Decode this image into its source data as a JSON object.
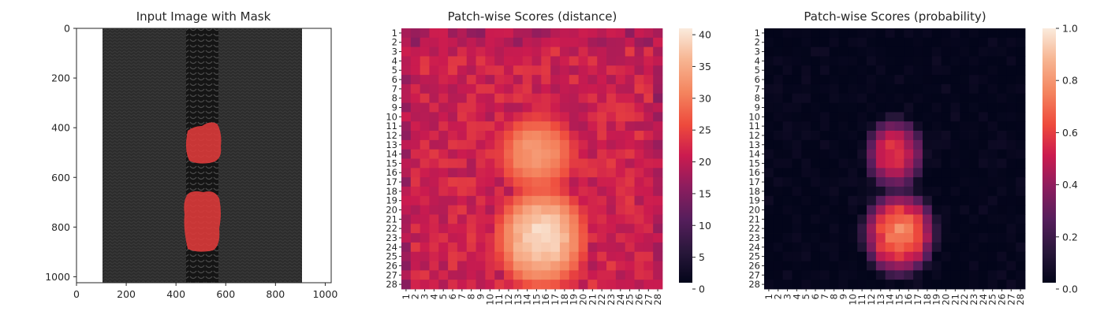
{
  "chart_data": [
    {
      "type": "image",
      "title": "Input Image with Mask",
      "xlim": [
        0,
        1024
      ],
      "ylim": [
        1024,
        0
      ],
      "xticks": [
        "0",
        "200",
        "400",
        "600",
        "800",
        "1000"
      ],
      "yticks": [
        "0",
        "200",
        "400",
        "600",
        "800",
        "1000"
      ],
      "colors": {
        "background": "#ffffff",
        "fabric": "#2b2b2b",
        "zipper": "#161616",
        "mask": "#dd3b3b"
      }
    },
    {
      "type": "heatmap",
      "title": "Patch-wise Scores (distance)",
      "rows": [
        "1",
        "2",
        "3",
        "4",
        "5",
        "6",
        "7",
        "8",
        "9",
        "10",
        "11",
        "12",
        "13",
        "14",
        "15",
        "16",
        "17",
        "18",
        "19",
        "20",
        "21",
        "22",
        "23",
        "24",
        "25",
        "26",
        "27",
        "28"
      ],
      "cols": [
        "1",
        "2",
        "3",
        "4",
        "5",
        "6",
        "7",
        "8",
        "9",
        "10",
        "11",
        "12",
        "13",
        "14",
        "15",
        "16",
        "17",
        "18",
        "19",
        "20",
        "21",
        "22",
        "23",
        "24",
        "25",
        "26",
        "27",
        "28"
      ],
      "colorbar": {
        "min": 0,
        "max": 41,
        "ticks": [
          "0",
          "5",
          "10",
          "15",
          "20",
          "25",
          "30",
          "35",
          "40"
        ]
      },
      "hotspots": [
        {
          "rows": [
            12,
            16
          ],
          "cols": [
            13,
            17
          ],
          "peak": 34
        },
        {
          "rows": [
            20,
            26
          ],
          "cols": [
            13,
            18
          ],
          "peak": 41
        }
      ],
      "background_range": [
        18,
        24
      ]
    },
    {
      "type": "heatmap",
      "title": "Patch-wise Scores (probability)",
      "rows": [
        "1",
        "2",
        "3",
        "4",
        "5",
        "6",
        "7",
        "8",
        "9",
        "10",
        "11",
        "12",
        "13",
        "14",
        "15",
        "16",
        "17",
        "18",
        "19",
        "20",
        "21",
        "22",
        "23",
        "24",
        "25",
        "26",
        "27",
        "28"
      ],
      "cols": [
        "1",
        "2",
        "3",
        "4",
        "5",
        "6",
        "7",
        "8",
        "9",
        "10",
        "11",
        "12",
        "13",
        "14",
        "15",
        "16",
        "17",
        "18",
        "19",
        "20",
        "21",
        "22",
        "23",
        "24",
        "25",
        "26",
        "27",
        "28"
      ],
      "colorbar": {
        "min": 0.0,
        "max": 1.0,
        "ticks": [
          "0.0",
          "0.2",
          "0.4",
          "0.6",
          "0.8",
          "1.0"
        ]
      },
      "hotspots": [
        {
          "rows": [
            12,
            16
          ],
          "cols": [
            13,
            16
          ],
          "peak": 0.62
        },
        {
          "rows": [
            20,
            25
          ],
          "cols": [
            13,
            17
          ],
          "peak": 0.82
        }
      ],
      "background_range": [
        0.0,
        0.04
      ]
    }
  ]
}
